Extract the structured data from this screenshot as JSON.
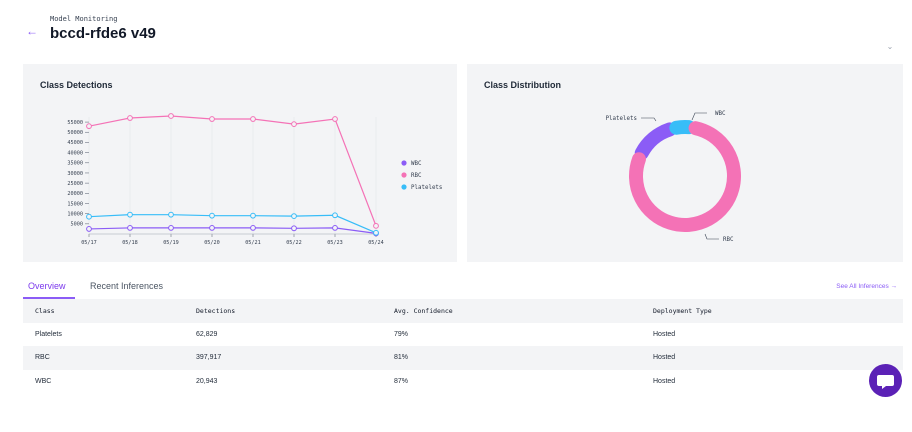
{
  "header": {
    "back_label": "←",
    "eyebrow": "Model Monitoring",
    "title": "bccd-rfde6 v49",
    "corner_icon": "⌄"
  },
  "detections_card": {
    "title": "Class Detections"
  },
  "distribution_card": {
    "title": "Class Distribution"
  },
  "chart_data": [
    {
      "type": "line",
      "title": "Class Detections",
      "categories": [
        "05/17",
        "05/18",
        "05/19",
        "05/20",
        "05/21",
        "05/22",
        "05/23",
        "05/24"
      ],
      "yticks": [
        "5000",
        "10000",
        "15000",
        "20000",
        "25000",
        "30000",
        "35000",
        "40000",
        "45000",
        "50000",
        "55000"
      ],
      "ylim": [
        0,
        57500
      ],
      "series": [
        {
          "name": "WBC",
          "color": "#8b5cf6",
          "values": [
            2500,
            3000,
            3000,
            3000,
            3000,
            2800,
            3000,
            300
          ]
        },
        {
          "name": "RBC",
          "color": "#f472b6",
          "values": [
            53000,
            57000,
            58000,
            56500,
            56500,
            54000,
            56500,
            4000
          ]
        },
        {
          "name": "Platelets",
          "color": "#38bdf8",
          "values": [
            8500,
            9500,
            9500,
            9000,
            9000,
            8800,
            9200,
            600
          ]
        }
      ],
      "legend": [
        "WBC",
        "RBC",
        "Platelets"
      ],
      "legend_position": "right"
    },
    {
      "type": "pie",
      "title": "Class Distribution",
      "categories": [
        "Platelets",
        "WBC",
        "RBC"
      ],
      "values": [
        62829,
        20943,
        397917
      ],
      "colors": [
        "#8b5cf6",
        "#38bdf8",
        "#f472b6"
      ],
      "labels": [
        "Platelets",
        "WBC",
        "RBC"
      ]
    }
  ],
  "tabs": {
    "overview": "Overview",
    "recent": "Recent Inferences",
    "see_all": "See All Inferences →"
  },
  "table": {
    "headers": [
      "Class",
      "Detections",
      "Avg. Confidence",
      "Deployment Type"
    ],
    "rows": [
      [
        "Platelets",
        "62,829",
        "79%",
        "Hosted"
      ],
      [
        "RBC",
        "397,917",
        "81%",
        "Hosted"
      ],
      [
        "WBC",
        "20,943",
        "87%",
        "Hosted"
      ]
    ]
  },
  "chat": {
    "icon": "chat-icon"
  }
}
